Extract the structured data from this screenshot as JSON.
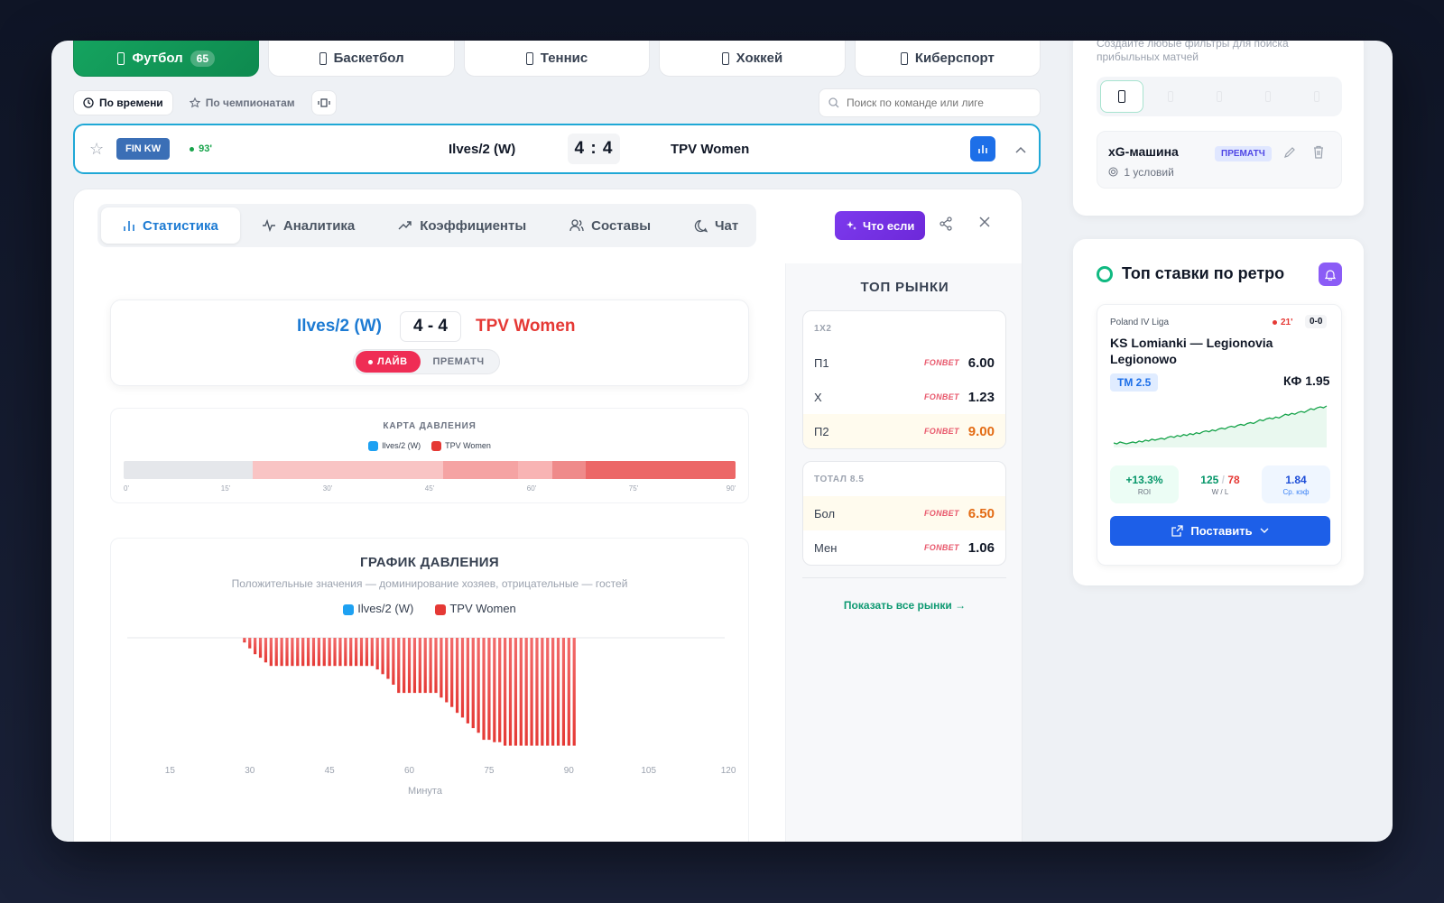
{
  "sports": [
    {
      "label": "Футбол",
      "count": "65",
      "active": true
    },
    {
      "label": "Баскетбол"
    },
    {
      "label": "Теннис"
    },
    {
      "label": "Хоккей"
    },
    {
      "label": "Киберспорт"
    }
  ],
  "filters": {
    "by_time": "По времени",
    "by_league": "По чемпионатам",
    "search_placeholder": "Поиск по команде или лиге"
  },
  "match": {
    "league": "FIN KW",
    "minute": "93'",
    "home": "Ilves/2 (W)",
    "score": "4 : 4",
    "away": "TPV Women"
  },
  "detail_tabs": [
    "Статистика",
    "Аналитика",
    "Коэффициенты",
    "Составы",
    "Чат"
  ],
  "whatif_label": "Что если",
  "scoreboard": {
    "home": "Ilves/2 (W)",
    "score": "4 - 4",
    "away": "TPV Women",
    "live_label": "ЛАЙВ",
    "prematch_label": "ПРЕМАТЧ"
  },
  "pressure_map": {
    "title": "КАРТА ДАВЛЕНИЯ",
    "legend_home": "Ilves/2 (W)",
    "legend_away": "TPV Women",
    "ticks": [
      "0'",
      "15'",
      "30'",
      "45'",
      "60'",
      "75'",
      "90'"
    ],
    "segments": [
      {
        "from": 0,
        "to": 19,
        "color": "#e5e7eb"
      },
      {
        "from": 19,
        "to": 47,
        "color": "#f9c4c4"
      },
      {
        "from": 47,
        "to": 58,
        "color": "#f5a3a3"
      },
      {
        "from": 58,
        "to": 63,
        "color": "#f8b4b4"
      },
      {
        "from": 63,
        "to": 68,
        "color": "#ef8a8a"
      },
      {
        "from": 68,
        "to": 90,
        "color": "#ec6767"
      }
    ]
  },
  "pressure_graph": {
    "title": "ГРАФИК ДАВЛЕНИЯ",
    "subtitle": "Положительные значения — доминирование хозяев, отрицательные — гостей",
    "legend_home": "Ilves/2 (W)",
    "legend_away": "TPV Women",
    "xlabel": "Минута"
  },
  "chart_data": {
    "type": "bar",
    "xlabel": "Минута",
    "xticks": [
      15,
      30,
      45,
      60,
      75,
      90,
      105,
      120
    ],
    "x_range": [
      9,
      121
    ],
    "y_range": [
      -100,
      0
    ],
    "colors": {
      "home": "#1ea1f2",
      "away": "#e53935"
    },
    "series": [
      {
        "name": "TPV Women",
        "x_start": 29,
        "values": [
          -4,
          -9,
          -14,
          -17,
          -21,
          -24,
          -24,
          -24,
          -24,
          -24,
          -24,
          -24,
          -24,
          -24,
          -24,
          -24,
          -24,
          -24,
          -24,
          -24,
          -24,
          -24,
          -24,
          -24,
          -24,
          -27,
          -31,
          -35,
          -40,
          -47,
          -47,
          -47,
          -47,
          -47,
          -47,
          -47,
          -47,
          -51,
          -55,
          -59,
          -64,
          -68,
          -73,
          -77,
          -81,
          -87,
          -87,
          -89,
          -89,
          -92,
          -92,
          -92,
          -92,
          -92,
          -92,
          -92,
          -92,
          -92,
          -92,
          -92,
          -92,
          -92,
          -92
        ]
      }
    ]
  },
  "top_markets": {
    "title": "ТОП РЫНКИ",
    "groups": [
      {
        "name": "1X2",
        "rows": [
          {
            "label": "П1",
            "bookmaker": "FONBET",
            "odd": "6.00"
          },
          {
            "label": "X",
            "bookmaker": "FONBET",
            "odd": "1.23"
          },
          {
            "label": "П2",
            "bookmaker": "FONBET",
            "odd": "9.00",
            "highlight": true
          }
        ]
      },
      {
        "name": "ТОТАЛ 8.5",
        "rows": [
          {
            "label": "Бол",
            "bookmaker": "FONBET",
            "odd": "6.50",
            "highlight": true
          },
          {
            "label": "Мен",
            "bookmaker": "FONBET",
            "odd": "1.06"
          }
        ]
      }
    ],
    "show_all": "Показать все рынки →"
  },
  "sidebar": {
    "filter_hint": "Создайте любые фильтры для поиска прибыльных матчей",
    "saved_filter": {
      "name": "xG-машина",
      "badge": "ПРЕМАТЧ",
      "conditions": "1 условий"
    },
    "retro": {
      "title": "Топ ставки по ретро",
      "league": "Poland IV Liga",
      "minute": "21'",
      "score": "0-0",
      "teams": "KS Lomianki — Legionovia Legionowo",
      "market": "ТМ 2.5",
      "kf": "КФ 1.95",
      "spark": [
        5,
        4,
        6,
        5,
        4,
        5,
        6,
        5,
        7,
        6,
        8,
        7,
        9,
        8,
        9,
        10,
        9,
        11,
        12,
        11,
        13,
        12,
        14,
        13,
        15,
        14,
        16,
        15,
        17,
        18,
        17,
        19,
        18,
        20,
        21,
        20,
        22,
        23,
        22,
        24,
        25,
        24,
        26,
        27,
        26,
        28,
        30,
        29,
        31,
        32,
        31,
        33,
        32,
        34,
        36,
        35,
        37,
        36,
        38,
        39,
        38,
        40,
        42,
        41,
        43,
        44,
        43,
        45
      ],
      "roi": "+13.3%",
      "roi_label": "ROI",
      "wins": "125",
      "sep": "/",
      "losses": "78",
      "wl_label": "W / L",
      "avg_kf": "1.84",
      "avg_kf_label": "Ср. кэф",
      "place_label": "Поставить"
    }
  }
}
